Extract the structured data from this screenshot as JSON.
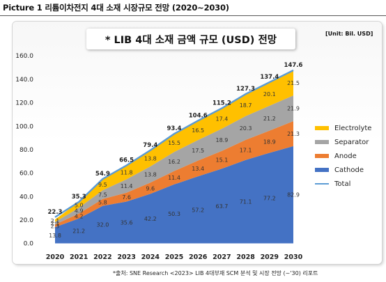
{
  "caption": "Picture 1  리튬이차전지 4대 소재 시장규모 전망 (2020~2030)",
  "unit": "[Unit: Bil. USD]",
  "source": "*출처:   SNE Research  <2023> LIB 4대부재 SCM 분석 및 시장 전망 (~'30) 리포트",
  "colors": {
    "cathode": "#4472c4",
    "anode": "#ed7d31",
    "separator": "#a5a5a5",
    "electrolyte": "#ffc000",
    "total": "#5b9bd5"
  },
  "chart_data": {
    "type": "area",
    "title": "* LIB 4대 소재 금액 규모 (USD) 전망",
    "xlabel": "",
    "ylabel": "",
    "ylim": [
      0,
      160
    ],
    "yticks": [
      "0.0",
      "20.0",
      "40.0",
      "60.0",
      "80.0",
      "100.0",
      "120.0",
      "140.0",
      "160.0"
    ],
    "stacked": true,
    "legend_position": "right",
    "categories": [
      "2020",
      "2021",
      "2022",
      "2023",
      "2024",
      "2025",
      "2026",
      "2027",
      "2028",
      "2029",
      "2030"
    ],
    "series": [
      {
        "name": "Cathode",
        "key": "cathode",
        "values": [
          13.8,
          21.2,
          32.0,
          35.6,
          42.2,
          50.3,
          57.2,
          63.7,
          71.1,
          77.2,
          82.9
        ],
        "labels": [
          "13.8",
          "21.2",
          "32.0",
          "35.6",
          "42.2",
          "50.3",
          "57.2",
          "63.7",
          "71.1",
          "77.2",
          "82.9"
        ]
      },
      {
        "name": "Anode",
        "key": "anode",
        "values": [
          2.3,
          4.2,
          5.8,
          7.6,
          9.6,
          11.4,
          13.4,
          15.1,
          17.1,
          18.9,
          21.3
        ],
        "labels": [
          "2.3",
          "4.2",
          "5.8",
          "7.6",
          "9.6",
          "11.4",
          "13.4",
          "15.1",
          "17.1",
          "18.9",
          "21.3"
        ]
      },
      {
        "name": "Separator",
        "key": "separator",
        "values": [
          2.1,
          4.9,
          7.5,
          11.4,
          13.8,
          16.2,
          17.5,
          18.9,
          20.3,
          21.2,
          21.9
        ],
        "labels": [
          "2.1",
          "4.9",
          "7.5",
          "11.4",
          "13.8",
          "16.2",
          "17.5",
          "18.9",
          "20.3",
          "21.2",
          "21.9"
        ]
      },
      {
        "name": "Electrolyte",
        "key": "electrolyte",
        "values": [
          2.1,
          5.0,
          9.5,
          11.8,
          13.8,
          15.5,
          16.5,
          17.4,
          18.7,
          20.1,
          21.5
        ],
        "labels": [
          "2.1",
          "5.0",
          "9.5",
          "11.8",
          "13.8",
          "15.5",
          "16.5",
          "17.4",
          "18.7",
          "20.1",
          "21.5"
        ]
      }
    ],
    "total": {
      "name": "Total",
      "values": [
        22.3,
        35.3,
        54.9,
        66.5,
        79.4,
        93.4,
        104.6,
        115.2,
        127.3,
        137.4,
        147.6
      ],
      "labels": [
        "22.3",
        "35.3",
        "54.9",
        "66.5",
        "79.4",
        "93.4",
        "104.6",
        "115.2",
        "127.3",
        "137.4",
        "147.6"
      ]
    }
  },
  "legend": [
    {
      "label": "Electrolyte",
      "key": "electrolyte"
    },
    {
      "label": "Separator",
      "key": "separator"
    },
    {
      "label": "Anode",
      "key": "anode"
    },
    {
      "label": "Cathode",
      "key": "cathode"
    },
    {
      "label": "Total",
      "key": "total"
    }
  ]
}
